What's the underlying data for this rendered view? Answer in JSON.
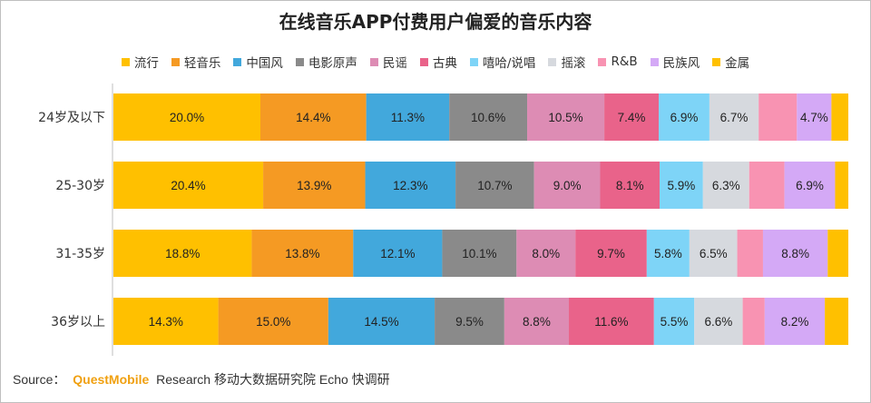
{
  "chart_data": {
    "type": "bar",
    "stacked": true,
    "orientation": "horizontal",
    "normalized_to_100": true,
    "title": "在线音乐APP付费用户偏爱的音乐内容",
    "categories": [
      "24岁及以下",
      "25-30岁",
      "31-35岁",
      "36岁以上"
    ],
    "series": [
      {
        "name": "流行",
        "color": "#ffc000",
        "values": [
          20.0,
          20.4,
          18.8,
          14.3
        ],
        "labels": [
          "20.0%",
          "20.4%",
          "18.8%",
          "14.3%"
        ]
      },
      {
        "name": "轻音乐",
        "color": "#f59a23",
        "values": [
          14.4,
          13.9,
          13.8,
          15.0
        ],
        "labels": [
          "14.4%",
          "13.9%",
          "13.8%",
          "15.0%"
        ]
      },
      {
        "name": "中国风",
        "color": "#42a8dc",
        "values": [
          11.3,
          12.3,
          12.1,
          14.5
        ],
        "labels": [
          "11.3%",
          "12.3%",
          "12.1%",
          "14.5%"
        ]
      },
      {
        "name": "电影原声",
        "color": "#8a8a8a",
        "values": [
          10.6,
          10.7,
          10.1,
          9.5
        ],
        "labels": [
          "10.6%",
          "10.7%",
          "10.1%",
          "9.5%"
        ]
      },
      {
        "name": "民谣",
        "color": "#dd8cb4",
        "values": [
          10.5,
          9.0,
          8.0,
          8.8
        ],
        "labels": [
          "10.5%",
          "9.0%",
          "8.0%",
          "8.8%"
        ]
      },
      {
        "name": "古典",
        "color": "#e9638a",
        "values": [
          7.4,
          8.1,
          9.7,
          11.6
        ],
        "labels": [
          "7.4%",
          "8.1%",
          "9.7%",
          "11.6%"
        ]
      },
      {
        "name": "嘻哈/说唱",
        "color": "#7ed4f7",
        "values": [
          6.9,
          5.9,
          5.8,
          5.5
        ],
        "labels": [
          "6.9%",
          "5.9%",
          "5.8%",
          "5.5%"
        ]
      },
      {
        "name": "摇滚",
        "color": "#d6d9de",
        "values": [
          6.7,
          6.3,
          6.5,
          6.6
        ],
        "labels": [
          "6.7%",
          "6.3%",
          "6.5%",
          "6.6%"
        ]
      },
      {
        "name": "R&B",
        "color": "#f893b2",
        "values": [
          5.2,
          4.8,
          3.5,
          3.0
        ],
        "labels": [
          "",
          "",
          "",
          ""
        ]
      },
      {
        "name": "民族风",
        "color": "#d4a9f6",
        "values": [
          4.7,
          6.9,
          8.8,
          8.2
        ],
        "labels": [
          "4.7%",
          "6.9%",
          "8.8%",
          "8.2%"
        ]
      },
      {
        "name": "金属",
        "color": "#ffc000",
        "values": [
          2.3,
          1.8,
          2.8,
          3.2
        ],
        "labels": [
          "",
          "",
          "",
          ""
        ]
      }
    ],
    "xlim": [
      0,
      100
    ],
    "grid": false,
    "legend_position": "top"
  },
  "source": {
    "prefix": "Source：",
    "brand": "QuestMobile",
    "rest": "Research 移动大数据研究院 Echo 快调研"
  }
}
